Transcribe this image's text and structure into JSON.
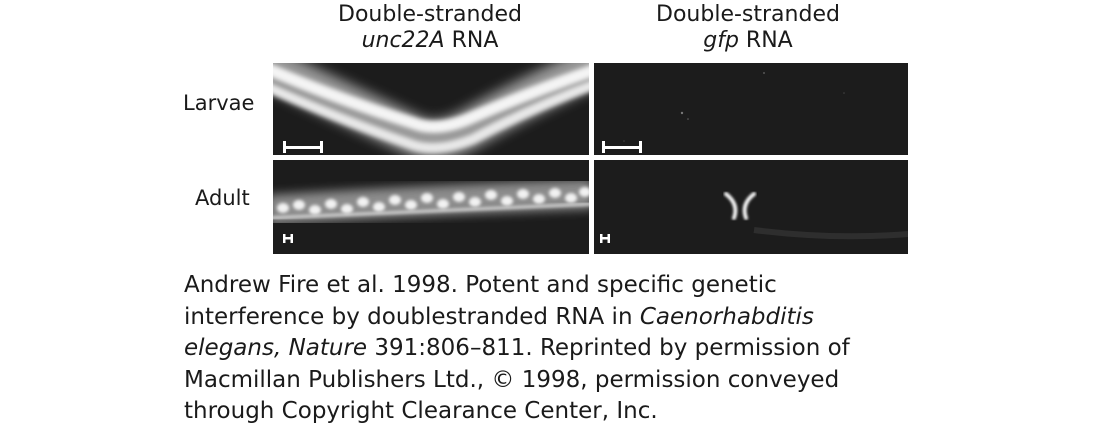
{
  "columns": [
    {
      "line1": "Double-stranded",
      "gene": "unc22A",
      "suffix": " RNA"
    },
    {
      "line1": "Double-stranded",
      "gene": "gfp",
      "suffix": " RNA"
    }
  ],
  "rows": [
    {
      "label": "Larvae"
    },
    {
      "label": "Adult"
    }
  ],
  "caption": {
    "line1": "Andrew Fire et al. 1998. Potent and specific genetic",
    "line2_a": "interference by doublestranded RNA in ",
    "line2_italic": "Caenorhabditis",
    "line3_italic": "elegans, Nature",
    "line3_b": " 391:806–811. Reprinted by permission of",
    "line4": "Macmillan Publishers Ltd., © 1998, permission conveyed",
    "line5": "through Copyright Clearance Center, Inc."
  },
  "colors": {
    "panel_background": "#1c1c1c",
    "fluorescence": "#f2f2f2",
    "text": "#1a1a1a"
  }
}
